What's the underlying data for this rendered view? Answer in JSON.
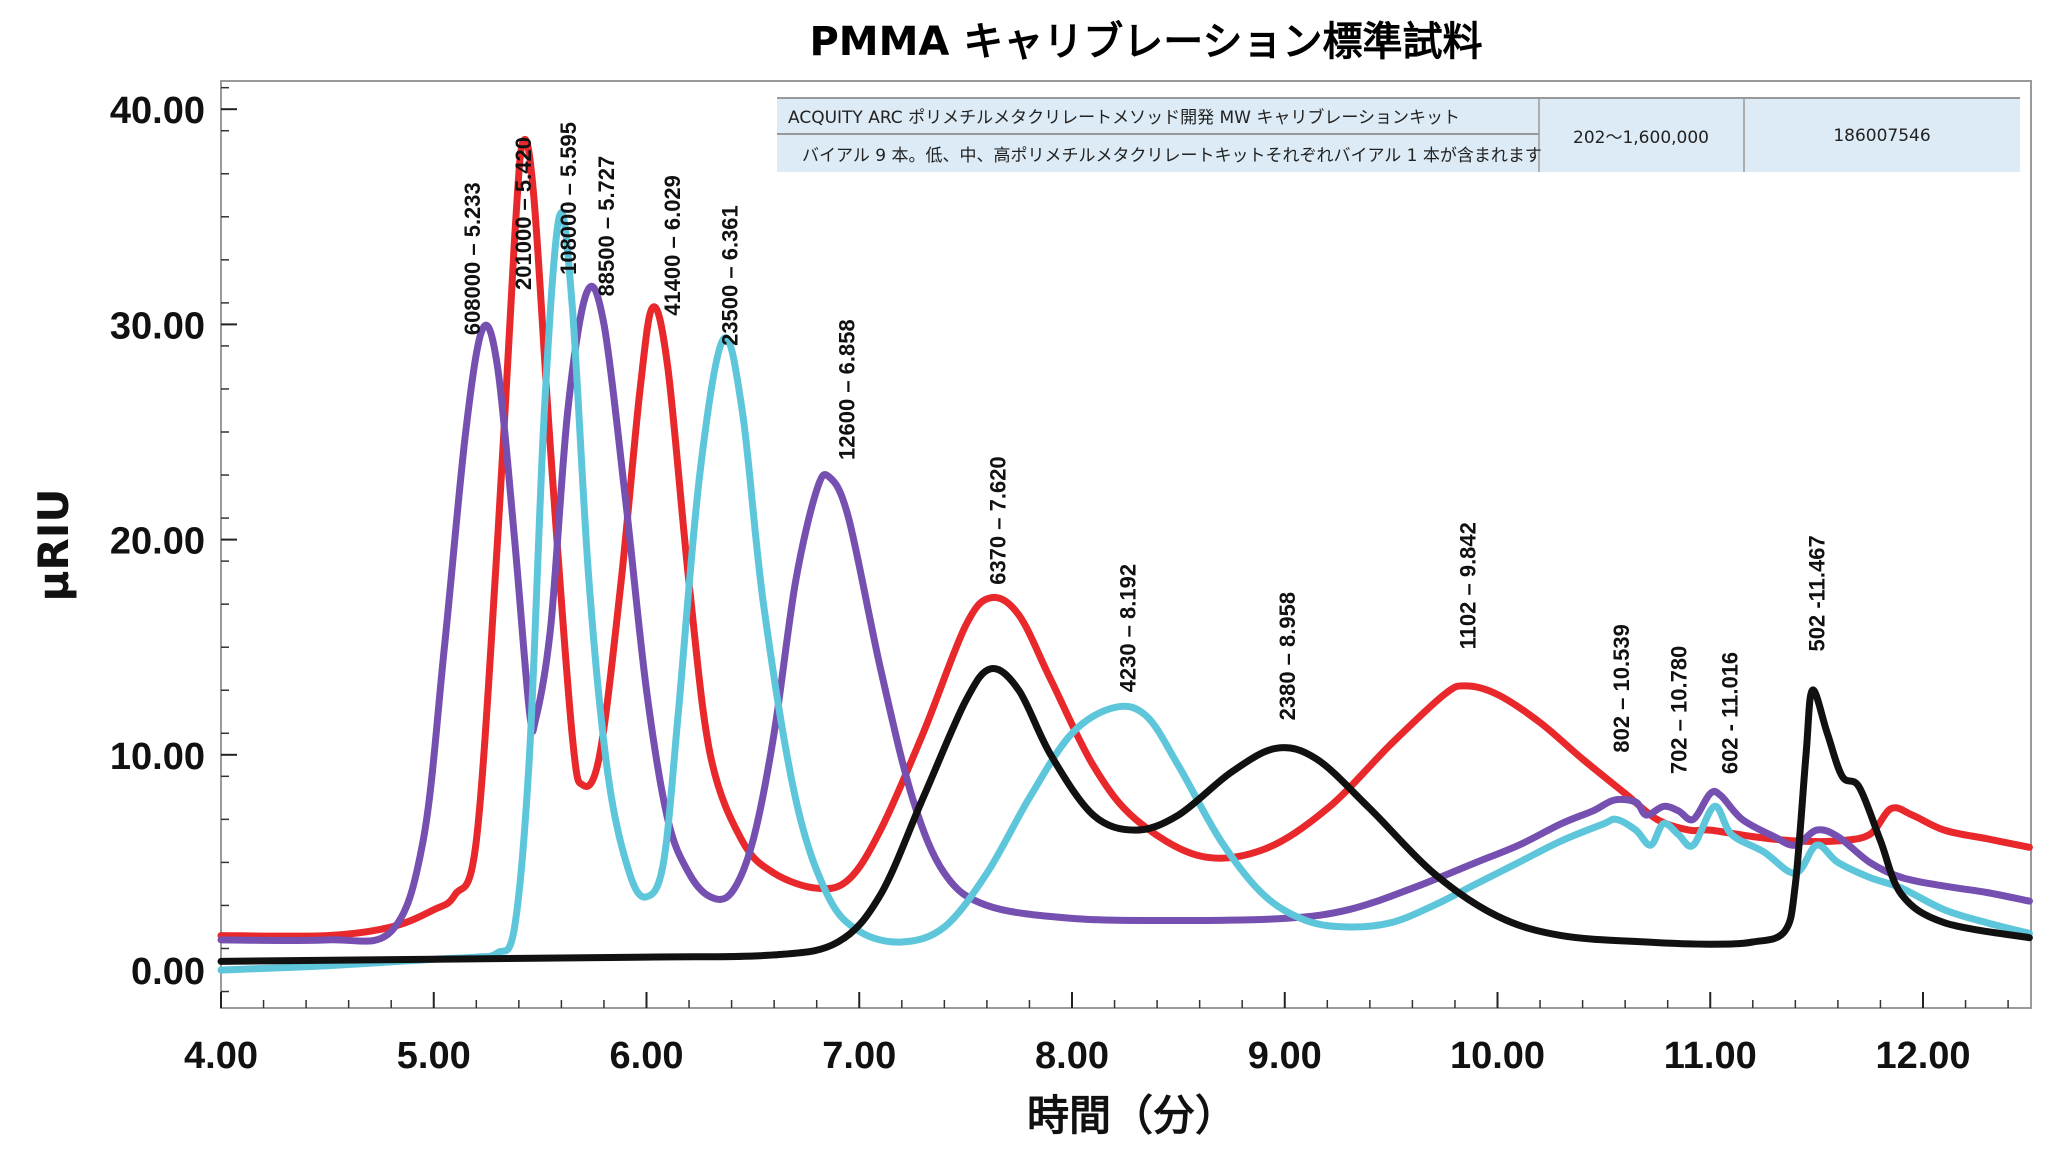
{
  "chart_data": {
    "type": "line",
    "title": "PMMA キャリブレーション標準試料",
    "xlabel": "時間（分）",
    "ylabel": "µRIU",
    "xlim": [
      4.0,
      12.5
    ],
    "ylim": [
      -1.5,
      41.5
    ],
    "xticks": [
      "4.00",
      "5.00",
      "6.00",
      "7.00",
      "8.00",
      "9.00",
      "10.00",
      "11.00",
      "12.00"
    ],
    "xtick_values": [
      4,
      5,
      6,
      7,
      8,
      9,
      10,
      11,
      12
    ],
    "yticks": [
      "0.00",
      "10.00",
      "20.00",
      "30.00",
      "40.00"
    ],
    "ytick_values": [
      0,
      10,
      20,
      30,
      40
    ],
    "colors": {
      "red": "#e8282b",
      "purple": "#7650b0",
      "cyan": "#5ec6da",
      "black": "#111111"
    },
    "series": [
      {
        "name": "red",
        "color": "#e8282b",
        "points": [
          [
            4.0,
            1.6
          ],
          [
            4.5,
            1.6
          ],
          [
            4.8,
            2.0
          ],
          [
            5.0,
            2.8
          ],
          [
            5.1,
            3.5
          ],
          [
            5.2,
            6
          ],
          [
            5.3,
            20
          ],
          [
            5.38,
            34
          ],
          [
            5.42,
            38.5
          ],
          [
            5.47,
            36
          ],
          [
            5.55,
            24
          ],
          [
            5.65,
            11
          ],
          [
            5.7,
            8.6
          ],
          [
            5.78,
            10
          ],
          [
            5.88,
            18
          ],
          [
            5.97,
            27
          ],
          [
            6.03,
            30.8
          ],
          [
            6.1,
            28
          ],
          [
            6.2,
            18
          ],
          [
            6.3,
            10
          ],
          [
            6.45,
            6
          ],
          [
            6.6,
            4.5
          ],
          [
            6.8,
            3.8
          ],
          [
            6.95,
            4.2
          ],
          [
            7.1,
            6.5
          ],
          [
            7.3,
            11
          ],
          [
            7.5,
            16
          ],
          [
            7.62,
            17.3
          ],
          [
            7.75,
            16.5
          ],
          [
            7.9,
            13.5
          ],
          [
            8.1,
            9.5
          ],
          [
            8.3,
            7
          ],
          [
            8.6,
            5.3
          ],
          [
            8.9,
            5.6
          ],
          [
            9.2,
            7.5
          ],
          [
            9.5,
            10.5
          ],
          [
            9.75,
            12.8
          ],
          [
            9.85,
            13.2
          ],
          [
            10.0,
            12.8
          ],
          [
            10.2,
            11.5
          ],
          [
            10.4,
            9.8
          ],
          [
            10.6,
            8.2
          ],
          [
            10.75,
            7
          ],
          [
            10.9,
            6.5
          ],
          [
            11.0,
            6.5
          ],
          [
            11.2,
            6.2
          ],
          [
            11.4,
            6.0
          ],
          [
            11.6,
            6.0
          ],
          [
            11.75,
            6.3
          ],
          [
            11.85,
            7.5
          ],
          [
            11.95,
            7.2
          ],
          [
            12.1,
            6.5
          ],
          [
            12.3,
            6.1
          ],
          [
            12.5,
            5.7
          ]
        ]
      },
      {
        "name": "purple",
        "color": "#7650b0",
        "points": [
          [
            4.0,
            1.4
          ],
          [
            4.5,
            1.4
          ],
          [
            4.8,
            1.8
          ],
          [
            4.95,
            6
          ],
          [
            5.05,
            15
          ],
          [
            5.15,
            25
          ],
          [
            5.23,
            29.8
          ],
          [
            5.3,
            28
          ],
          [
            5.38,
            20
          ],
          [
            5.45,
            12
          ],
          [
            5.48,
            11.7
          ],
          [
            5.55,
            16
          ],
          [
            5.63,
            26
          ],
          [
            5.72,
            31.5
          ],
          [
            5.8,
            30
          ],
          [
            5.9,
            22
          ],
          [
            6.0,
            13
          ],
          [
            6.1,
            7
          ],
          [
            6.2,
            4.5
          ],
          [
            6.3,
            3.4
          ],
          [
            6.4,
            3.6
          ],
          [
            6.5,
            6
          ],
          [
            6.6,
            11
          ],
          [
            6.7,
            18
          ],
          [
            6.8,
            22.3
          ],
          [
            6.86,
            22.9
          ],
          [
            6.95,
            21
          ],
          [
            7.1,
            14
          ],
          [
            7.25,
            8
          ],
          [
            7.4,
            4.5
          ],
          [
            7.6,
            3
          ],
          [
            8.0,
            2.4
          ],
          [
            8.5,
            2.3
          ],
          [
            9.0,
            2.4
          ],
          [
            9.3,
            2.8
          ],
          [
            9.6,
            3.8
          ],
          [
            9.9,
            5
          ],
          [
            10.1,
            5.8
          ],
          [
            10.3,
            6.8
          ],
          [
            10.45,
            7.4
          ],
          [
            10.55,
            7.9
          ],
          [
            10.65,
            7.8
          ],
          [
            10.7,
            7.2
          ],
          [
            10.78,
            7.6
          ],
          [
            10.85,
            7.4
          ],
          [
            10.92,
            7.0
          ],
          [
            11.0,
            8.2
          ],
          [
            11.05,
            8.1
          ],
          [
            11.15,
            7.0
          ],
          [
            11.3,
            6.2
          ],
          [
            11.4,
            5.8
          ],
          [
            11.5,
            6.5
          ],
          [
            11.6,
            6.2
          ],
          [
            11.75,
            5.0
          ],
          [
            11.9,
            4.3
          ],
          [
            12.1,
            3.9
          ],
          [
            12.3,
            3.6
          ],
          [
            12.5,
            3.2
          ]
        ]
      },
      {
        "name": "cyan",
        "color": "#5ec6da",
        "points": [
          [
            4.0,
            0.0
          ],
          [
            4.5,
            0.2
          ],
          [
            5.0,
            0.5
          ],
          [
            5.2,
            0.6
          ],
          [
            5.3,
            0.8
          ],
          [
            5.38,
            2
          ],
          [
            5.45,
            10
          ],
          [
            5.52,
            26
          ],
          [
            5.59,
            35
          ],
          [
            5.65,
            31
          ],
          [
            5.73,
            18
          ],
          [
            5.82,
            9
          ],
          [
            5.92,
            4.5
          ],
          [
            6.0,
            3.4
          ],
          [
            6.08,
            5
          ],
          [
            6.15,
            12
          ],
          [
            6.25,
            23
          ],
          [
            6.36,
            29.3
          ],
          [
            6.45,
            26
          ],
          [
            6.55,
            17
          ],
          [
            6.7,
            8
          ],
          [
            6.85,
            3.5
          ],
          [
            7.0,
            1.8
          ],
          [
            7.2,
            1.3
          ],
          [
            7.4,
            2
          ],
          [
            7.6,
            4.5
          ],
          [
            7.8,
            8
          ],
          [
            8.0,
            11
          ],
          [
            8.2,
            12.2
          ],
          [
            8.35,
            11.8
          ],
          [
            8.5,
            9.5
          ],
          [
            8.7,
            6
          ],
          [
            8.9,
            3.5
          ],
          [
            9.1,
            2.3
          ],
          [
            9.3,
            2.0
          ],
          [
            9.5,
            2.2
          ],
          [
            9.7,
            3
          ],
          [
            9.9,
            4
          ],
          [
            10.1,
            5
          ],
          [
            10.3,
            6
          ],
          [
            10.5,
            6.8
          ],
          [
            10.56,
            7.0
          ],
          [
            10.65,
            6.5
          ],
          [
            10.72,
            5.8
          ],
          [
            10.78,
            6.8
          ],
          [
            10.85,
            6.3
          ],
          [
            10.92,
            5.8
          ],
          [
            11.02,
            7.6
          ],
          [
            11.1,
            6.3
          ],
          [
            11.25,
            5.5
          ],
          [
            11.4,
            4.5
          ],
          [
            11.5,
            5.8
          ],
          [
            11.6,
            5.0
          ],
          [
            11.75,
            4.3
          ],
          [
            11.9,
            3.8
          ],
          [
            12.1,
            2.8
          ],
          [
            12.3,
            2.2
          ],
          [
            12.5,
            1.7
          ]
        ]
      },
      {
        "name": "black",
        "color": "#111111",
        "points": [
          [
            4.0,
            0.4
          ],
          [
            5.0,
            0.5
          ],
          [
            6.0,
            0.6
          ],
          [
            6.6,
            0.7
          ],
          [
            6.9,
            1.3
          ],
          [
            7.1,
            3.5
          ],
          [
            7.3,
            8
          ],
          [
            7.5,
            12.5
          ],
          [
            7.62,
            14
          ],
          [
            7.75,
            13
          ],
          [
            7.9,
            10
          ],
          [
            8.1,
            7.2
          ],
          [
            8.3,
            6.5
          ],
          [
            8.5,
            7.2
          ],
          [
            8.75,
            9.2
          ],
          [
            8.96,
            10.3
          ],
          [
            9.15,
            9.8
          ],
          [
            9.4,
            7.5
          ],
          [
            9.7,
            4.5
          ],
          [
            10.0,
            2.5
          ],
          [
            10.3,
            1.6
          ],
          [
            10.7,
            1.3
          ],
          [
            11.0,
            1.2
          ],
          [
            11.2,
            1.3
          ],
          [
            11.35,
            1.8
          ],
          [
            11.4,
            4
          ],
          [
            11.45,
            10
          ],
          [
            11.48,
            13
          ],
          [
            11.55,
            11
          ],
          [
            11.62,
            9
          ],
          [
            11.7,
            8.5
          ],
          [
            11.8,
            6
          ],
          [
            11.9,
            3.5
          ],
          [
            12.1,
            2.2
          ],
          [
            12.5,
            1.5
          ]
        ]
      }
    ],
    "annotations": [
      {
        "text": "608000 – 5.233",
        "x": 5.18,
        "y": 29.5
      },
      {
        "text": "201000 – 5.420",
        "x": 5.42,
        "y": 31.6
      },
      {
        "text": "108000 – 5.595",
        "x": 5.63,
        "y": 32.3
      },
      {
        "text": "88500 – 5.727",
        "x": 5.81,
        "y": 31.3
      },
      {
        "text": "41400 – 6.029",
        "x": 6.12,
        "y": 30.4
      },
      {
        "text": "23500 – 6.361",
        "x": 6.39,
        "y": 29.0
      },
      {
        "text": "12600 – 6.858",
        "x": 6.94,
        "y": 23.7
      },
      {
        "text": "6370 – 7.620",
        "x": 7.65,
        "y": 17.9
      },
      {
        "text": "4230 – 8.192",
        "x": 8.26,
        "y": 12.9
      },
      {
        "text": "2380 – 8.958",
        "x": 9.01,
        "y": 11.6
      },
      {
        "text": "1102 – 9.842",
        "x": 9.86,
        "y": 14.9
      },
      {
        "text": "802 – 10.539",
        "x": 10.58,
        "y": 10.1
      },
      {
        "text": "702 – 10.780",
        "x": 10.85,
        "y": 9.1
      },
      {
        "text": "602 - 11.016",
        "x": 11.09,
        "y": 9.1
      },
      {
        "text": "502 -11.467",
        "x": 11.5,
        "y": 14.8
      }
    ],
    "legend_table": {
      "product_name": "ACQUITY ARC ポリメチルメタクリレートメソッド開発 MW キャリブレーションキット",
      "description": "バイアル 9 本。低、中、高ポリメチルメタクリレートキットそれぞれバイアル 1 本が含まれます",
      "mw_range": "202～1,600,000",
      "part_number": "186007546"
    },
    "grid": false
  }
}
